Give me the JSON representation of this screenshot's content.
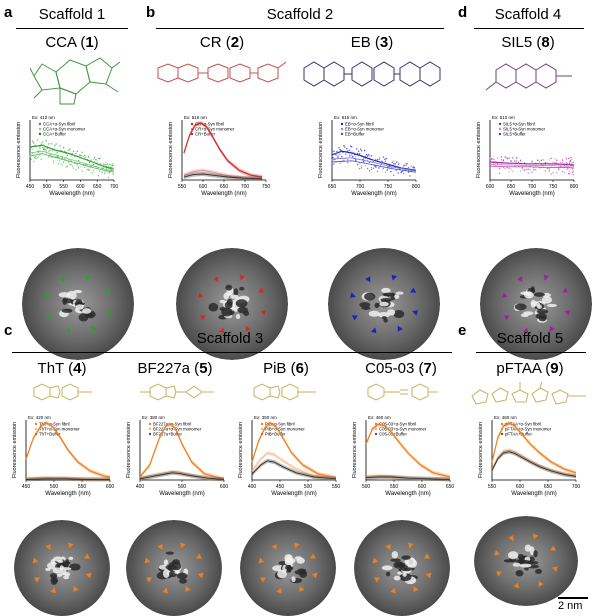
{
  "figure": {
    "panels": {
      "a": {
        "letter": "a",
        "scaffold": "Scaffold 1",
        "compounds": [
          {
            "name": "CCA",
            "num": "1"
          }
        ]
      },
      "b": {
        "letter": "b",
        "scaffold": "Scaffold 2",
        "compounds": [
          {
            "name": "CR",
            "num": "2"
          },
          {
            "name": "EB",
            "num": "3"
          }
        ]
      },
      "c": {
        "letter": "c",
        "scaffold": "Scaffold 3",
        "compounds": [
          {
            "name": "ThT",
            "num": "4"
          },
          {
            "name": "BF227a",
            "num": "5"
          },
          {
            "name": "PiB",
            "num": "6"
          },
          {
            "name": "C05-03",
            "num": "7"
          }
        ]
      },
      "d": {
        "letter": "d",
        "scaffold": "Scaffold 4",
        "compounds": [
          {
            "name": "SIL5",
            "num": "8"
          }
        ]
      },
      "e": {
        "letter": "e",
        "scaffold": "Scaffold 5",
        "compounds": [
          {
            "name": "pFTAA",
            "num": "9"
          }
        ]
      }
    },
    "scale_bar": "2 nm",
    "colors": {
      "CCA": "#2ca02c",
      "CR": "#d62728",
      "EB": "#1f1fbf",
      "SIL5": "#a020a0",
      "scaffold3": "#f07f1e",
      "pFTAA": "#f07f1e",
      "struct_CCA": "#3c9a3c",
      "struct_CR": "#c0504d",
      "struct_EB": "#333366",
      "struct_SIL5": "#7a3d7a",
      "struct_yellow": "#c9b060"
    }
  },
  "chart_data": [
    {
      "id": "CCA",
      "type": "line",
      "ex_label": "Ex: 410 nm",
      "xlabel": "Wavelength (nm)",
      "ylabel": "Fluorescence emission",
      "xticks": [
        "450",
        "500",
        "550",
        "600",
        "650",
        "700"
      ],
      "xlim": [
        440,
        710
      ],
      "legend": [
        "CCA+α-Syn fibril",
        "CCA+α-Syn monomer",
        "CCA+Buffer"
      ],
      "series": [
        {
          "x": [
            440,
            480,
            520,
            560,
            600,
            640,
            680,
            710
          ],
          "values": [
            0.55,
            0.58,
            0.5,
            0.45,
            0.38,
            0.3,
            0.22,
            0.18
          ]
        },
        {
          "x": [
            440,
            480,
            520,
            560,
            600,
            640,
            680,
            710
          ],
          "values": [
            0.45,
            0.48,
            0.42,
            0.36,
            0.3,
            0.24,
            0.18,
            0.15
          ]
        },
        {
          "x": [
            440,
            480,
            520,
            560,
            600,
            640,
            680,
            710
          ],
          "values": [
            0.4,
            0.44,
            0.38,
            0.32,
            0.27,
            0.21,
            0.16,
            0.13
          ]
        }
      ]
    },
    {
      "id": "CR",
      "type": "line",
      "ex_label": "Ex: 516 nm",
      "xlabel": "Wavelength (nm)",
      "ylabel": "Fluorescence emission",
      "xticks": [
        "550",
        "600",
        "650",
        "700",
        "750"
      ],
      "xlim": [
        540,
        760
      ],
      "legend": [
        "CR+α-Syn fibril",
        "CR+α-Syn monomer",
        "CR+Buffer"
      ],
      "series": [
        {
          "x": [
            545,
            560,
            575,
            590,
            605,
            620,
            640,
            660,
            690,
            720,
            750
          ],
          "values": [
            0.45,
            0.75,
            0.92,
            0.95,
            0.88,
            0.72,
            0.5,
            0.32,
            0.16,
            0.08,
            0.05
          ]
        },
        {
          "x": [
            545,
            570,
            595,
            620,
            660,
            700,
            750
          ],
          "values": [
            0.08,
            0.14,
            0.16,
            0.13,
            0.07,
            0.04,
            0.02
          ]
        },
        {
          "x": [
            545,
            570,
            595,
            620,
            660,
            700,
            750
          ],
          "values": [
            0.05,
            0.09,
            0.1,
            0.08,
            0.05,
            0.03,
            0.02
          ]
        }
      ]
    },
    {
      "id": "EB",
      "type": "line",
      "ex_label": "Ex: 615 nm",
      "xlabel": "Wavelength (nm)",
      "ylabel": "Fluorescence emission",
      "xticks": [
        "650",
        "700",
        "750",
        "800"
      ],
      "xlim": [
        640,
        810
      ],
      "legend": [
        "EB+α-Syn fibril",
        "EB+α-Syn monomer",
        "EB+Buffer"
      ],
      "series": [
        {
          "x": [
            640,
            660,
            680,
            700,
            720,
            750,
            780,
            810
          ],
          "values": [
            0.42,
            0.48,
            0.45,
            0.4,
            0.34,
            0.27,
            0.2,
            0.16
          ]
        },
        {
          "x": [
            640,
            680,
            720,
            760,
            810
          ],
          "values": [
            0.35,
            0.37,
            0.3,
            0.22,
            0.15
          ]
        },
        {
          "x": [
            640,
            680,
            720,
            760,
            810
          ],
          "values": [
            0.3,
            0.32,
            0.26,
            0.19,
            0.13
          ]
        }
      ]
    },
    {
      "id": "SIL5",
      "type": "line",
      "ex_label": "Ex: 510 nm",
      "xlabel": "Wavelength (nm)",
      "ylabel": "Fluorescence emission",
      "xticks": [
        "600",
        "650",
        "700",
        "750",
        "800"
      ],
      "xlim": [
        590,
        810
      ],
      "legend": [
        "SIL5+α-Syn fibril",
        "SIL5+α-Syn monomer",
        "SIL5+Buffer"
      ],
      "series": [
        {
          "x": [
            590,
            640,
            690,
            740,
            790,
            810
          ],
          "values": [
            0.3,
            0.28,
            0.27,
            0.27,
            0.26,
            0.25
          ]
        },
        {
          "x": [
            590,
            640,
            690,
            740,
            790,
            810
          ],
          "values": [
            0.26,
            0.25,
            0.24,
            0.24,
            0.23,
            0.23
          ]
        },
        {
          "x": [
            590,
            640,
            690,
            740,
            790,
            810
          ],
          "values": [
            0.23,
            0.22,
            0.22,
            0.21,
            0.21,
            0.2
          ]
        }
      ]
    },
    {
      "id": "ThT",
      "type": "line",
      "ex_label": "Ex: 420 nm",
      "xlabel": "Wavelength (nm)",
      "ylabel": "Fluorescence emission",
      "xticks": [
        "450",
        "500",
        "550",
        "600"
      ],
      "xlim": [
        440,
        610
      ],
      "legend": [
        "ThT+α-Syn fibril",
        "ThT+α-Syn monomer",
        "ThT+Buffer"
      ],
      "series": [
        {
          "x": [
            440,
            455,
            470,
            482,
            495,
            510,
            525,
            545,
            570,
            600,
            610
          ],
          "values": [
            0.35,
            0.7,
            0.9,
            0.95,
            0.88,
            0.7,
            0.5,
            0.3,
            0.15,
            0.06,
            0.05
          ]
        },
        {
          "x": [
            440,
            480,
            520,
            560,
            610
          ],
          "values": [
            0.02,
            0.04,
            0.03,
            0.02,
            0.01
          ]
        },
        {
          "x": [
            440,
            480,
            520,
            560,
            610
          ],
          "values": [
            0.01,
            0.02,
            0.02,
            0.01,
            0.01
          ]
        }
      ]
    },
    {
      "id": "BF227a",
      "type": "line",
      "ex_label": "Ex: 380 nm",
      "xlabel": "Wavelength (nm)",
      "ylabel": "Fluorescence emission",
      "xticks": [
        "400",
        "500",
        "600"
      ],
      "xlim": [
        390,
        650
      ],
      "legend": [
        "BF227a+α-Syn fibril",
        "BF227a+α-Syn monomer",
        "BF227a+Buffer"
      ],
      "series": [
        {
          "x": [
            390,
            420,
            450,
            470,
            485,
            500,
            520,
            550,
            590,
            640,
            650
          ],
          "values": [
            0.05,
            0.25,
            0.7,
            0.9,
            0.93,
            0.85,
            0.6,
            0.3,
            0.1,
            0.03,
            0.02
          ]
        },
        {
          "x": [
            390,
            430,
            470,
            490,
            510,
            550,
            600,
            650
          ],
          "values": [
            0.03,
            0.08,
            0.12,
            0.14,
            0.13,
            0.08,
            0.03,
            0.01
          ]
        },
        {
          "x": [
            390,
            430,
            470,
            490,
            510,
            550,
            600,
            650
          ],
          "values": [
            0.02,
            0.06,
            0.1,
            0.12,
            0.11,
            0.07,
            0.03,
            0.01
          ]
        }
      ]
    },
    {
      "id": "PiB",
      "type": "line",
      "ex_label": "Ex: 350 nm",
      "xlabel": "Wavelength (nm)",
      "ylabel": "Fluorescence emission",
      "xticks": [
        "400",
        "450",
        "500",
        "550"
      ],
      "xlim": [
        370,
        560
      ],
      "legend": [
        "PiB+α-Syn fibril",
        "PiB+α-Syn monomer",
        "PiB+Buffer"
      ],
      "series": [
        {
          "x": [
            370,
            385,
            400,
            412,
            425,
            440,
            460,
            485,
            520,
            560
          ],
          "values": [
            0.3,
            0.65,
            0.88,
            0.95,
            0.88,
            0.7,
            0.45,
            0.25,
            0.1,
            0.04
          ]
        },
        {
          "x": [
            370,
            390,
            405,
            420,
            440,
            470,
            510,
            560
          ],
          "values": [
            0.15,
            0.35,
            0.45,
            0.42,
            0.32,
            0.18,
            0.07,
            0.03
          ]
        },
        {
          "x": [
            370,
            390,
            405,
            420,
            440,
            470,
            510,
            560
          ],
          "values": [
            0.1,
            0.25,
            0.32,
            0.3,
            0.22,
            0.12,
            0.05,
            0.02
          ]
        }
      ]
    },
    {
      "id": "C05-03",
      "type": "line",
      "ex_label": "Ex: 460 nm",
      "xlabel": "Wavelength (nm)",
      "ylabel": "Fluorescence emission",
      "xticks": [
        "500",
        "550",
        "600",
        "650"
      ],
      "xlim": [
        470,
        670
      ],
      "legend": [
        "C05-03+α-Syn fibril",
        "C05-03+α-Syn monomer",
        "C05-03+Buffer"
      ],
      "series": [
        {
          "x": [
            470,
            485,
            500,
            515,
            530,
            550,
            570,
            600,
            630,
            670
          ],
          "values": [
            0.6,
            0.85,
            0.93,
            0.9,
            0.8,
            0.62,
            0.45,
            0.25,
            0.12,
            0.05
          ]
        },
        {
          "x": [
            470,
            500,
            530,
            570,
            620,
            670
          ],
          "values": [
            0.05,
            0.07,
            0.06,
            0.04,
            0.02,
            0.01
          ]
        },
        {
          "x": [
            470,
            500,
            530,
            570,
            620,
            670
          ],
          "values": [
            0.04,
            0.05,
            0.05,
            0.03,
            0.02,
            0.01
          ]
        }
      ]
    },
    {
      "id": "pFTAA",
      "type": "line",
      "ex_label": "Ex: 460 nm",
      "xlabel": "Wavelength (nm)",
      "ylabel": "Fluorescence emission",
      "xticks": [
        "550",
        "600",
        "650",
        "700"
      ],
      "xlim": [
        490,
        710
      ],
      "legend": [
        "pFTAA+α-Syn fibril",
        "pFTAA+α-Syn monomer",
        "pFTAA+Buffer"
      ],
      "series": [
        {
          "x": [
            490,
            505,
            520,
            535,
            550,
            570,
            590,
            615,
            645,
            680,
            710
          ],
          "values": [
            0.3,
            0.7,
            0.9,
            0.95,
            0.9,
            0.75,
            0.6,
            0.45,
            0.3,
            0.18,
            0.12
          ]
        },
        {
          "x": [
            490,
            505,
            520,
            535,
            550,
            570,
            590,
            615,
            645,
            680,
            710
          ],
          "values": [
            0.18,
            0.38,
            0.48,
            0.5,
            0.47,
            0.4,
            0.32,
            0.24,
            0.16,
            0.1,
            0.07
          ]
        },
        {
          "x": [
            490,
            505,
            520,
            535,
            550,
            570,
            590,
            615,
            645,
            680,
            710
          ],
          "values": [
            0.16,
            0.35,
            0.45,
            0.47,
            0.44,
            0.37,
            0.3,
            0.22,
            0.15,
            0.09,
            0.06
          ]
        }
      ]
    }
  ]
}
